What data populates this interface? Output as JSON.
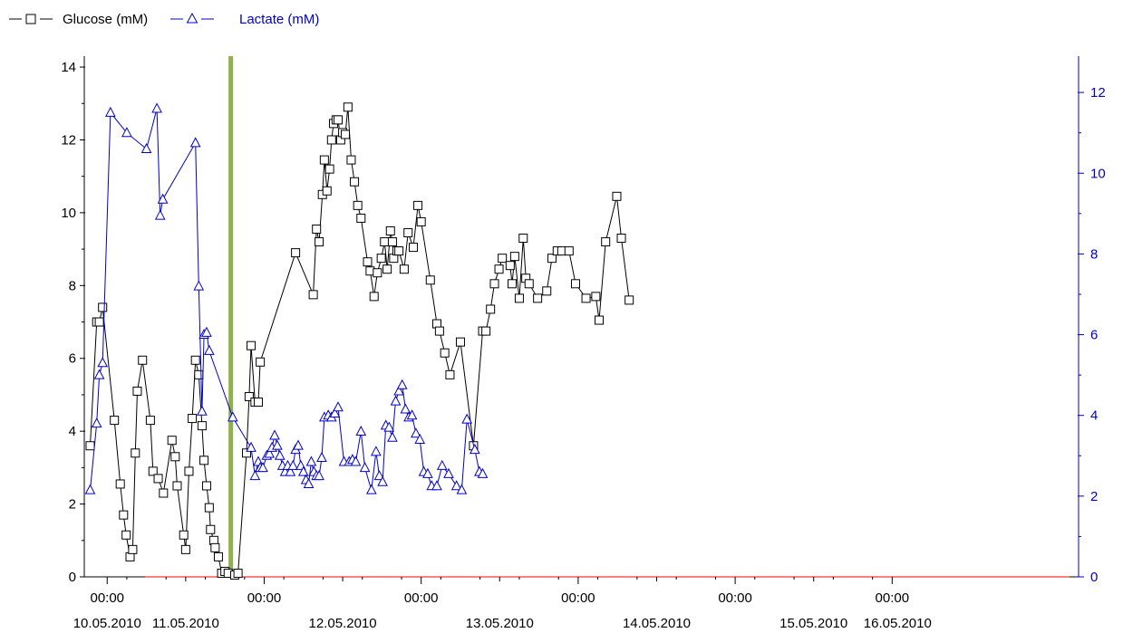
{
  "legend": {
    "glucose_label": "Glucose (mM)",
    "lactate_label": "Lactate (mM)"
  },
  "colors": {
    "glucose": "#000000",
    "lactate": "#0000cc",
    "marker_line": "#8fb04a",
    "baseline": "#ff0000"
  },
  "chart_data": {
    "type": "line",
    "x_axis": {
      "unit": "hours since 10.05.2010 00:00",
      "range": [
        -3.5,
        148.5
      ],
      "ticks": [
        {
          "x": 0,
          "time": "00:00",
          "date": "10.05.2010"
        },
        {
          "x": 12,
          "time": "",
          "date": "11.05.2010"
        },
        {
          "x": 24,
          "time": "00:00",
          "date": ""
        },
        {
          "x": 36,
          "time": "",
          "date": "12.05.2010"
        },
        {
          "x": 48,
          "time": "00:00",
          "date": ""
        },
        {
          "x": 60,
          "time": "",
          "date": "13.05.2010"
        },
        {
          "x": 72,
          "time": "00:00",
          "date": ""
        },
        {
          "x": 84,
          "time": "",
          "date": "14.05.2010"
        },
        {
          "x": 96,
          "time": "00:00",
          "date": ""
        },
        {
          "x": 108,
          "time": "",
          "date": "15.05.2010"
        },
        {
          "x": 120,
          "time": "00:00",
          "date": "16.05.2010"
        }
      ]
    },
    "y_left": {
      "range": [
        0,
        14.3
      ],
      "ticks": [
        0,
        2,
        4,
        6,
        8,
        10,
        12,
        14
      ]
    },
    "y_right": {
      "range": [
        0,
        12.9
      ],
      "ticks": [
        0,
        2,
        4,
        6,
        8,
        10,
        12
      ]
    },
    "vertical_marker_x": 18.9,
    "series": [
      {
        "name": "Glucose (mM)",
        "axis": "left",
        "marker": "square",
        "points": [
          [
            -2.6,
            3.6
          ],
          [
            -1.6,
            7
          ],
          [
            -1.2,
            7
          ],
          [
            -0.7,
            7.4
          ],
          [
            1.1,
            4.3
          ],
          [
            2,
            2.55
          ],
          [
            2.5,
            1.7
          ],
          [
            2.9,
            1.15
          ],
          [
            3.5,
            0.55
          ],
          [
            3.9,
            0.75
          ],
          [
            4.3,
            3.4
          ],
          [
            4.6,
            5.1
          ],
          [
            5.4,
            5.95
          ],
          [
            6.6,
            4.3
          ],
          [
            7,
            2.9
          ],
          [
            7.8,
            2.7
          ],
          [
            8.6,
            2.3
          ],
          [
            9.9,
            3.75
          ],
          [
            10.4,
            3.3
          ],
          [
            10.7,
            2.5
          ],
          [
            11.7,
            1.15
          ],
          [
            12,
            0.75
          ],
          [
            12.5,
            2.9
          ],
          [
            13,
            4.35
          ],
          [
            13.5,
            5.95
          ],
          [
            14,
            5.55
          ],
          [
            14.5,
            4.15
          ],
          [
            14.8,
            3.2
          ],
          [
            15.2,
            2.5
          ],
          [
            15.6,
            1.9
          ],
          [
            15.8,
            1.3
          ],
          [
            16.3,
            1
          ],
          [
            16.5,
            0.8
          ],
          [
            17,
            0.55
          ],
          [
            17.5,
            0.1
          ],
          [
            18,
            0.15
          ],
          [
            18.5,
            0.1
          ],
          [
            19.5,
            0.05
          ],
          [
            20,
            0.1
          ],
          [
            21.3,
            3.4
          ],
          [
            21.7,
            4.95
          ],
          [
            22,
            6.35
          ],
          [
            22.6,
            4.8
          ],
          [
            23.1,
            4.8
          ],
          [
            23.4,
            5.9
          ],
          [
            28.8,
            8.9
          ],
          [
            31.5,
            7.75
          ],
          [
            32,
            9.55
          ],
          [
            32.4,
            9.2
          ],
          [
            32.9,
            10.5
          ],
          [
            33.2,
            11.45
          ],
          [
            33.6,
            10.6
          ],
          [
            34,
            11.2
          ],
          [
            34.3,
            12
          ],
          [
            34.6,
            12.45
          ],
          [
            35,
            12.55
          ],
          [
            35.3,
            12.55
          ],
          [
            35.7,
            12
          ],
          [
            36,
            12.2
          ],
          [
            36.4,
            12.15
          ],
          [
            36.8,
            12.9
          ],
          [
            37.3,
            11.45
          ],
          [
            37.8,
            10.85
          ],
          [
            38.3,
            10.2
          ],
          [
            38.8,
            9.85
          ],
          [
            39.8,
            8.65
          ],
          [
            40.2,
            8.4
          ],
          [
            40.8,
            7.7
          ],
          [
            41.3,
            8.35
          ],
          [
            41.9,
            8.75
          ],
          [
            42.4,
            9.2
          ],
          [
            42.8,
            8.45
          ],
          [
            43.3,
            9.5
          ],
          [
            43.6,
            9.2
          ],
          [
            43.8,
            8.75
          ],
          [
            44.3,
            8.95
          ],
          [
            44.6,
            8.95
          ],
          [
            45.4,
            8.45
          ],
          [
            46,
            9.45
          ],
          [
            46.8,
            9.05
          ],
          [
            47.5,
            10.2
          ],
          [
            48,
            9.75
          ],
          [
            49.4,
            8.15
          ],
          [
            50.4,
            6.95
          ],
          [
            50.8,
            6.75
          ],
          [
            51.6,
            6.15
          ],
          [
            52.4,
            5.55
          ],
          [
            54,
            6.45
          ],
          [
            56,
            3.6
          ],
          [
            57.4,
            6.75
          ],
          [
            57.9,
            6.75
          ],
          [
            58.6,
            7.35
          ],
          [
            59.2,
            8.05
          ],
          [
            59.9,
            8.45
          ],
          [
            60.4,
            8.75
          ],
          [
            61.6,
            8.55
          ],
          [
            61.9,
            8.05
          ],
          [
            62.3,
            8.8
          ],
          [
            63,
            7.65
          ],
          [
            63.6,
            9.3
          ],
          [
            64,
            8.2
          ],
          [
            64.5,
            8.05
          ],
          [
            65.8,
            7.65
          ],
          [
            67.2,
            7.85
          ],
          [
            68,
            8.75
          ],
          [
            68.8,
            8.95
          ],
          [
            69.5,
            8.95
          ],
          [
            70.6,
            8.95
          ],
          [
            71.6,
            8.05
          ],
          [
            73.2,
            7.65
          ],
          [
            74.7,
            7.7
          ],
          [
            75.2,
            7.05
          ],
          [
            76.2,
            9.2
          ],
          [
            77.9,
            10.45
          ],
          [
            78.6,
            9.3
          ],
          [
            79.8,
            7.6
          ]
        ]
      },
      {
        "name": "Lactate (mM)",
        "axis": "right",
        "marker": "triangle",
        "points": [
          [
            -2.6,
            2.15
          ],
          [
            -1.6,
            3.8
          ],
          [
            -1.2,
            5
          ],
          [
            -0.7,
            5.3
          ],
          [
            0.5,
            11.5
          ],
          [
            3,
            11
          ],
          [
            6,
            10.6
          ],
          [
            7.6,
            11.6
          ],
          [
            8.1,
            8.95
          ],
          [
            8.5,
            9.35
          ],
          [
            13.5,
            10.75
          ],
          [
            14,
            7.2
          ],
          [
            14.5,
            4.1
          ],
          [
            14.8,
            6
          ],
          [
            15.2,
            6.05
          ],
          [
            15.6,
            5.6
          ],
          [
            19.2,
            3.95
          ],
          [
            22,
            3.2
          ],
          [
            22.6,
            2.5
          ],
          [
            23.1,
            2.85
          ],
          [
            23.4,
            2.7
          ],
          [
            23.8,
            2.7
          ],
          [
            24.4,
            3
          ],
          [
            24.8,
            3.05
          ],
          [
            25.2,
            3.2
          ],
          [
            25.6,
            3.5
          ],
          [
            26,
            3.25
          ],
          [
            26.4,
            3
          ],
          [
            26.8,
            2.75
          ],
          [
            27.2,
            2.6
          ],
          [
            27.6,
            2.75
          ],
          [
            28,
            2.6
          ],
          [
            28.4,
            2.75
          ],
          [
            28.8,
            3.15
          ],
          [
            29.2,
            3.25
          ],
          [
            29.6,
            2.75
          ],
          [
            30,
            2.6
          ],
          [
            30.4,
            2.4
          ],
          [
            30.8,
            2.3
          ],
          [
            31.2,
            2.85
          ],
          [
            31.6,
            2.6
          ],
          [
            32,
            2.5
          ],
          [
            32.4,
            2.5
          ],
          [
            32.8,
            2.95
          ],
          [
            33.2,
            3.95
          ],
          [
            33.8,
            4
          ],
          [
            34.3,
            3.95
          ],
          [
            34.8,
            4.05
          ],
          [
            35.3,
            4.2
          ],
          [
            36.2,
            2.85
          ],
          [
            37,
            2.85
          ],
          [
            37.5,
            2.9
          ],
          [
            38,
            2.85
          ],
          [
            38.8,
            3.6
          ],
          [
            39.4,
            2.7
          ],
          [
            40.4,
            2.15
          ],
          [
            41.1,
            3.1
          ],
          [
            41.6,
            2.5
          ],
          [
            42.1,
            2.35
          ],
          [
            42.6,
            3.75
          ],
          [
            43.1,
            3.7
          ],
          [
            43.6,
            3.45
          ],
          [
            44.1,
            4.35
          ],
          [
            44.6,
            4.6
          ],
          [
            45.1,
            4.75
          ],
          [
            45.6,
            4.15
          ],
          [
            46.1,
            3.95
          ],
          [
            46.6,
            4
          ],
          [
            47.2,
            3.55
          ],
          [
            47.8,
            3.4
          ],
          [
            48.4,
            2.6
          ],
          [
            49,
            2.55
          ],
          [
            49.6,
            2.25
          ],
          [
            50.4,
            2.25
          ],
          [
            51.2,
            2.75
          ],
          [
            52.2,
            2.55
          ],
          [
            53.4,
            2.25
          ],
          [
            54.2,
            2.15
          ],
          [
            55,
            3.9
          ],
          [
            56.2,
            3.15
          ],
          [
            56.9,
            2.6
          ],
          [
            57.4,
            2.55
          ]
        ]
      }
    ]
  }
}
